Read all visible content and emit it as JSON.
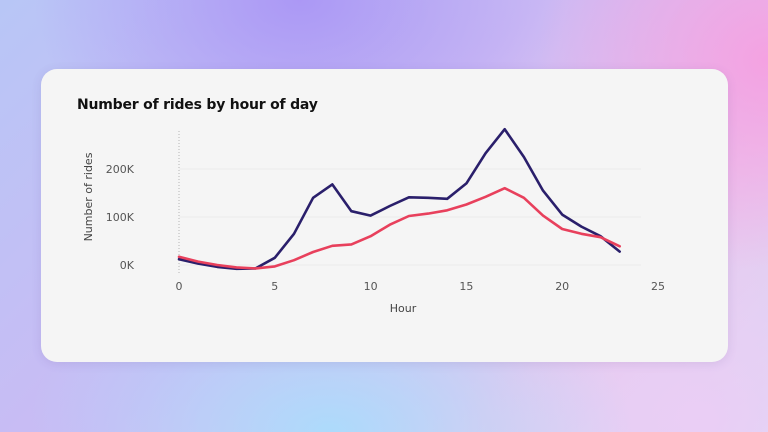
{
  "chart_data": {
    "type": "line",
    "title": "Number of rides by hour of day",
    "xlabel": "Hour",
    "ylabel": "Number of rides",
    "xlim": [
      0,
      25
    ],
    "ylim": [
      0,
      280000
    ],
    "x_ticks": [
      0,
      5,
      10,
      15,
      20,
      25
    ],
    "y_ticks": [
      {
        "value": 0,
        "label": "0K"
      },
      {
        "value": 100000,
        "label": "100K"
      },
      {
        "value": 200000,
        "label": "200K"
      }
    ],
    "x": [
      0,
      1,
      2,
      3,
      4,
      5,
      6,
      7,
      8,
      9,
      10,
      11,
      12,
      13,
      14,
      15,
      16,
      17,
      18,
      19,
      20,
      21,
      22,
      23
    ],
    "series": [
      {
        "color": "#2a1f6b",
        "values": [
          12000,
          3000,
          -4000,
          -8000,
          -7000,
          15000,
          65000,
          140000,
          168000,
          112000,
          103000,
          123000,
          141000,
          140000,
          138000,
          170000,
          233000,
          283000,
          225000,
          155000,
          105000,
          80000,
          60000,
          28000
        ]
      },
      {
        "color": "#e8405c",
        "values": [
          17000,
          7000,
          0,
          -5000,
          -7000,
          -3000,
          10000,
          27000,
          40000,
          43000,
          60000,
          84000,
          102000,
          107000,
          114000,
          126000,
          142000,
          160000,
          140000,
          103000,
          75000,
          65000,
          58000,
          39000
        ]
      }
    ]
  }
}
